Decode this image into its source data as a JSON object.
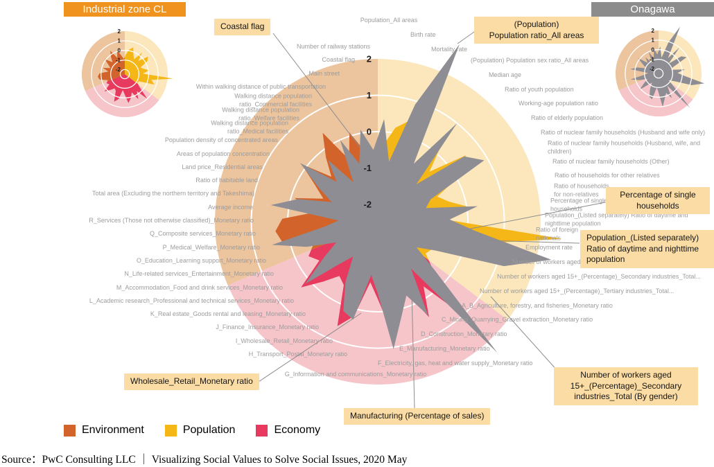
{
  "headers": {
    "left": "Industrial zone CL",
    "right": "Onagawa"
  },
  "annotations": [
    {
      "id": "coastal-flag",
      "label": "Coastal flag"
    },
    {
      "id": "population-ratio-all-areas",
      "label": "(Population)\nPopulation ratio_All areas"
    },
    {
      "id": "single-households",
      "label": "Percentage of single\nhouseholds"
    },
    {
      "id": "daytime-nighttime-population",
      "label": "Population_(Listed separately)\nRatio of daytime and nighttime\npopulation"
    },
    {
      "id": "secondary-industries-by-gender",
      "label": "Number of workers aged\n15+_(Percentage)_Secondary\nindustries_Total (By gender)"
    },
    {
      "id": "manufacturing-sales",
      "label": "Manufacturing (Percentage of sales)"
    },
    {
      "id": "wholesale-retail",
      "label": "Wholesale_Retail_Monetary ratio"
    }
  ],
  "legend": {
    "items": [
      {
        "label": "Environment",
        "color": "#D2632A"
      },
      {
        "label": "Population",
        "color": "#F5B717"
      },
      {
        "label": "Economy",
        "color": "#E73A5E"
      }
    ]
  },
  "source": "Source：PwC Consulting  LLC ｜ Visualizing  Social  Values to Solve Social  Issues, 2020 May",
  "chart_data": {
    "type": "radar",
    "scale": {
      "min": -2,
      "max": 2,
      "ticks": [
        2,
        1,
        0,
        -1,
        -2
      ]
    },
    "sectors": [
      {
        "name": "population",
        "bg": "#FBE7BB",
        "color": "#F5B717",
        "axis_range": [
          0,
          17
        ]
      },
      {
        "name": "economy",
        "bg": "#F6C5CA",
        "color": "#E73A5E",
        "axis_range": [
          18,
          34
        ]
      },
      {
        "name": "environment",
        "bg": "#ECC49E",
        "color": "#D2632A",
        "axis_range": [
          35,
          50
        ]
      }
    ],
    "axes": [
      "Population_All areas",
      "Birth rate",
      "Mortality rate",
      "",
      "(Population) Population sex ratio_All areas",
      "Median age",
      "Ratio of youth population",
      "Working-age population ratio",
      "Ratio of elderly population",
      "Ratio of nuclear family households (Husband and wife only)",
      "Ratio of nuclear family households (Husband, wife, and children)",
      "Ratio of nuclear family households (Other)",
      "Ratio of households for other relatives",
      "Ratio of households\nfor non-relatives",
      "Percentage of single\nhouseholds",
      "Population_(Listed separately) Ratio of daytime and nighttime population",
      "Ratio of foreign\nnationals",
      "Employment rate",
      "Number of workers aged 15+_(Percentage)_Primary industries_Total...",
      "Number of workers aged 15+_(Percentage)_Secondary industries_Total...",
      "Number of workers aged 15+_(Percentage)_Tertiary industries_Total...",
      "A_B_Agriculture, forestry, and fisheries_Monetary ratio",
      "C_Mining_Quarrying_Gravel extraction_Monetary ratio",
      "D_Construction_Monetary ratio",
      "E_Manufacturing_Monetary ratio",
      "F_Electricity, gas, heat and water supply_Monetary ratio",
      "G_Information and communications_Monetary ratio",
      "H_Transport_Postal_Monetary ratio",
      "I_Wholesale_Retail_Monetary ratio",
      "J_Finance_Insurance_Monetary ratio",
      "K_Real estate_Goods rental and leasing_Monetary ratio",
      "L_Academic research_Professional and technical services_Monetary ratio",
      "M_Accommodation_Food and drink services_Monetary ratio",
      "N_Life-related services_Entertainment_Monetary ratio",
      "O_Education_Learning support_Monetary ratio",
      "P_Medical_Welfare_Monetary ratio",
      "Q_Composite services_Monetary ratio",
      "R_Services (Those not otherwise classified)_Monetary ratio",
      "Average income",
      "Total area (Excluding the northern territory and Takeshima)",
      "Ratio of habitable land",
      "Land price_Residential areas",
      "Areas of population concentration",
      "Population density of concentrated areas",
      "Walking distance population\nratio_Medical facilities",
      "Walking distance population\nratio_Welfare facilities",
      "Walking distance population\nratio_Commercial facilities",
      "Within walking distance of public transportation",
      "Main street",
      "Coastal flag",
      "Number of railway stations"
    ],
    "series": [
      {
        "name": "Industrial zone CL",
        "values": [
          -0.4,
          0.15,
          0.45,
          -0.3,
          -0.65,
          0.4,
          -0.5,
          0.55,
          0.25,
          -0.7,
          -0.45,
          0.1,
          -0.6,
          2.6,
          0.35,
          0.8,
          -0.8,
          -0.9,
          -0.5,
          1.0,
          -0.3,
          0.5,
          -0.45,
          0.1,
          0.55,
          -0.35,
          -0.8,
          0.2,
          0.6,
          -0.5,
          -0.65,
          -0.25,
          0.3,
          -0.55,
          -0.35,
          -0.6,
          0.2,
          0.35,
          0.15,
          -0.75,
          -0.1,
          -0.85,
          -0.5,
          0.15,
          -0.7,
          -0.2,
          0.4,
          -0.6,
          0.1,
          -0.5,
          -0.9
        ]
      },
      {
        "name": "Onagawa",
        "color": "#8D8D93",
        "values": [
          0.35,
          -0.8,
          0.9,
          2.9,
          -0.6,
          1.0,
          -1.0,
          0.5,
          0.9,
          -0.9,
          -1.1,
          0.3,
          -0.5,
          0.2,
          2.4,
          1.2,
          -0.7,
          -1.2,
          -0.4,
          2.4,
          -0.9,
          0.45,
          -0.3,
          0.2,
          1.05,
          -0.5,
          -1.0,
          0.3,
          0.15,
          -0.6,
          -1.3,
          -0.9,
          0.15,
          -0.7,
          -1.2,
          -0.4,
          0.5,
          -1.0,
          -1.4,
          0.5,
          -0.2,
          -1.1,
          -0.6,
          0.2,
          -0.9,
          -0.3,
          -1.2,
          0.0,
          -0.8,
          0.1,
          -0.5
        ]
      }
    ]
  }
}
